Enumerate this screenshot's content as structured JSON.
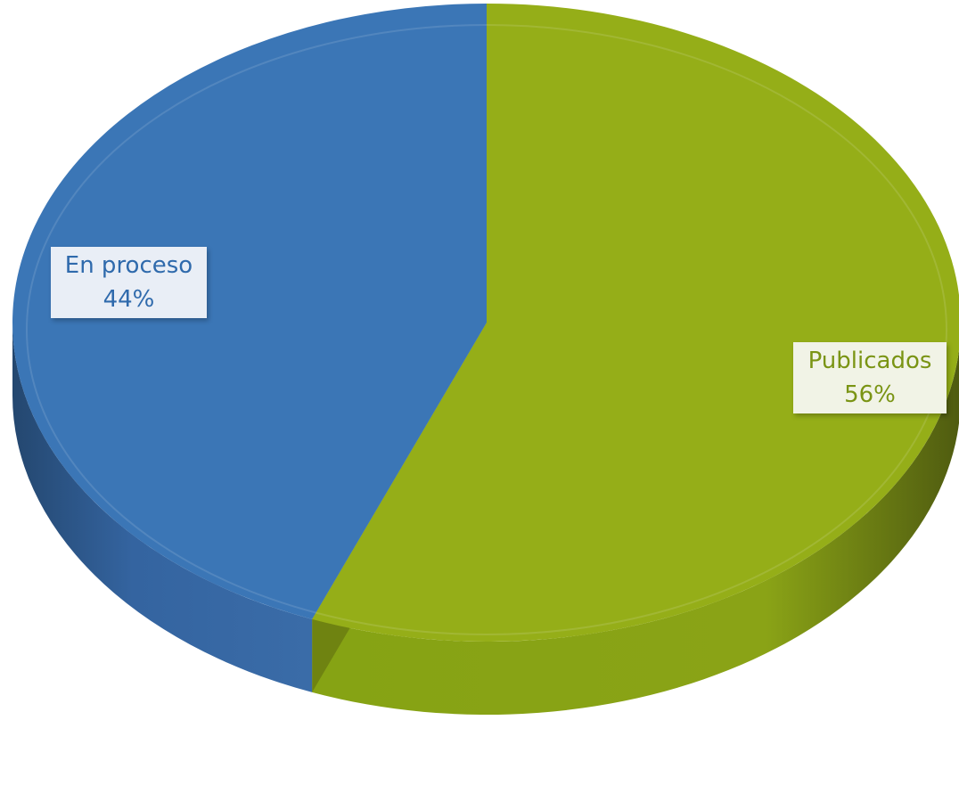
{
  "chart_data": {
    "type": "pie",
    "title": "",
    "slices": [
      {
        "label": "Publicados",
        "value": 56,
        "value_label": "56%",
        "color": "#95ae18",
        "side_color": "#6f8311",
        "text_color": "#7a9414"
      },
      {
        "label": "En proceso",
        "value": 44,
        "value_label": "44%",
        "color": "#3b76b6",
        "side_color": "#2b5a8d",
        "text_color": "#2f6aac"
      }
    ],
    "legend": "none",
    "style": "3d-tilted"
  }
}
